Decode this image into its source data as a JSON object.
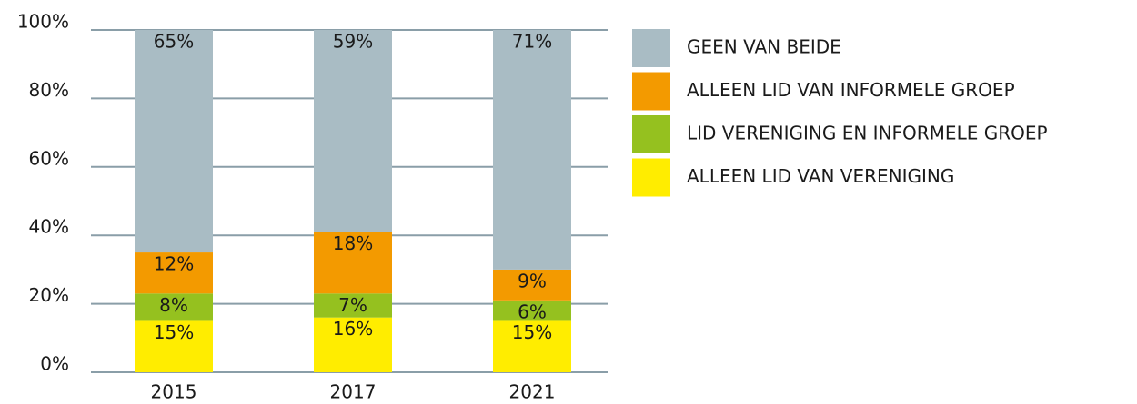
{
  "chart_data": {
    "type": "stacked_bar",
    "categories": [
      "2015",
      "2017",
      "2021"
    ],
    "series": [
      {
        "name": "GEEN VAN BEIDE",
        "color": "#a9bcc4",
        "values": [
          65,
          59,
          71
        ],
        "value_labels": [
          "65%",
          "59%",
          "71%"
        ]
      },
      {
        "name": "ALLEEN LID VAN INFORMELE GROEP",
        "color": "#f39a00",
        "values": [
          12,
          18,
          9
        ],
        "value_labels": [
          "12%",
          "18%",
          "9%"
        ]
      },
      {
        "name": "LID VERENIGING EN INFORMELE GROEP",
        "color": "#95c11f",
        "values": [
          8,
          7,
          6
        ],
        "value_labels": [
          "8%",
          "7%",
          "6%"
        ]
      },
      {
        "name": "ALLEEN LID VAN VERENIGING",
        "color": "#ffed00",
        "values": [
          15,
          16,
          15
        ],
        "value_labels": [
          "15%",
          "16%",
          "15%"
        ]
      }
    ],
    "ylim": [
      0,
      100
    ],
    "yticks": [
      {
        "value": 0,
        "label": "0%"
      },
      {
        "value": 20,
        "label": "20%"
      },
      {
        "value": 40,
        "label": "40%"
      },
      {
        "value": 60,
        "label": "60%"
      },
      {
        "value": 80,
        "label": "80%"
      },
      {
        "value": 100,
        "label": "100%"
      }
    ],
    "grid": true,
    "legend": "right"
  }
}
